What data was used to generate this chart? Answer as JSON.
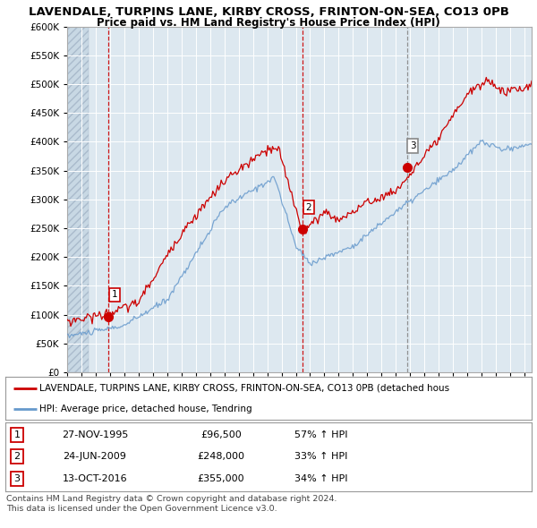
{
  "title": "LAVENDALE, TURPINS LANE, KIRBY CROSS, FRINTON-ON-SEA, CO13 0PB",
  "subtitle": "Price paid vs. HM Land Registry's House Price Index (HPI)",
  "ytick_values": [
    0,
    50000,
    100000,
    150000,
    200000,
    250000,
    300000,
    350000,
    400000,
    450000,
    500000,
    550000,
    600000
  ],
  "xmin": 1993.0,
  "xmax": 2025.5,
  "ymin": 0,
  "ymax": 600000,
  "sale_dates": [
    1995.9,
    2009.48,
    2016.79
  ],
  "sale_prices": [
    96500,
    248000,
    355000
  ],
  "sale_labels": [
    "1",
    "2",
    "3"
  ],
  "sale_date_strs": [
    "27-NOV-1995",
    "24-JUN-2009",
    "13-OCT-2016"
  ],
  "sale_price_strs": [
    "£96,500",
    "£248,000",
    "£355,000"
  ],
  "sale_hpi_strs": [
    "57% ↑ HPI",
    "33% ↑ HPI",
    "34% ↑ HPI"
  ],
  "vline_colors": [
    "#cc0000",
    "#cc0000",
    "#888888"
  ],
  "vline_styles": [
    "--",
    "--",
    "--"
  ],
  "red_line_color": "#cc0000",
  "blue_line_color": "#6699cc",
  "background_color": "#ffffff",
  "plot_bg_color": "#dde8f0",
  "grid_color": "#ffffff",
  "legend_line1": "LAVENDALE, TURPINS LANE, KIRBY CROSS, FRINTON-ON-SEA, CO13 0PB (detached hous",
  "legend_line2": "HPI: Average price, detached house, Tendring",
  "footer1": "Contains HM Land Registry data © Crown copyright and database right 2024.",
  "footer2": "This data is licensed under the Open Government Licence v3.0.",
  "title_fontsize": 9.5,
  "subtitle_fontsize": 8.5
}
